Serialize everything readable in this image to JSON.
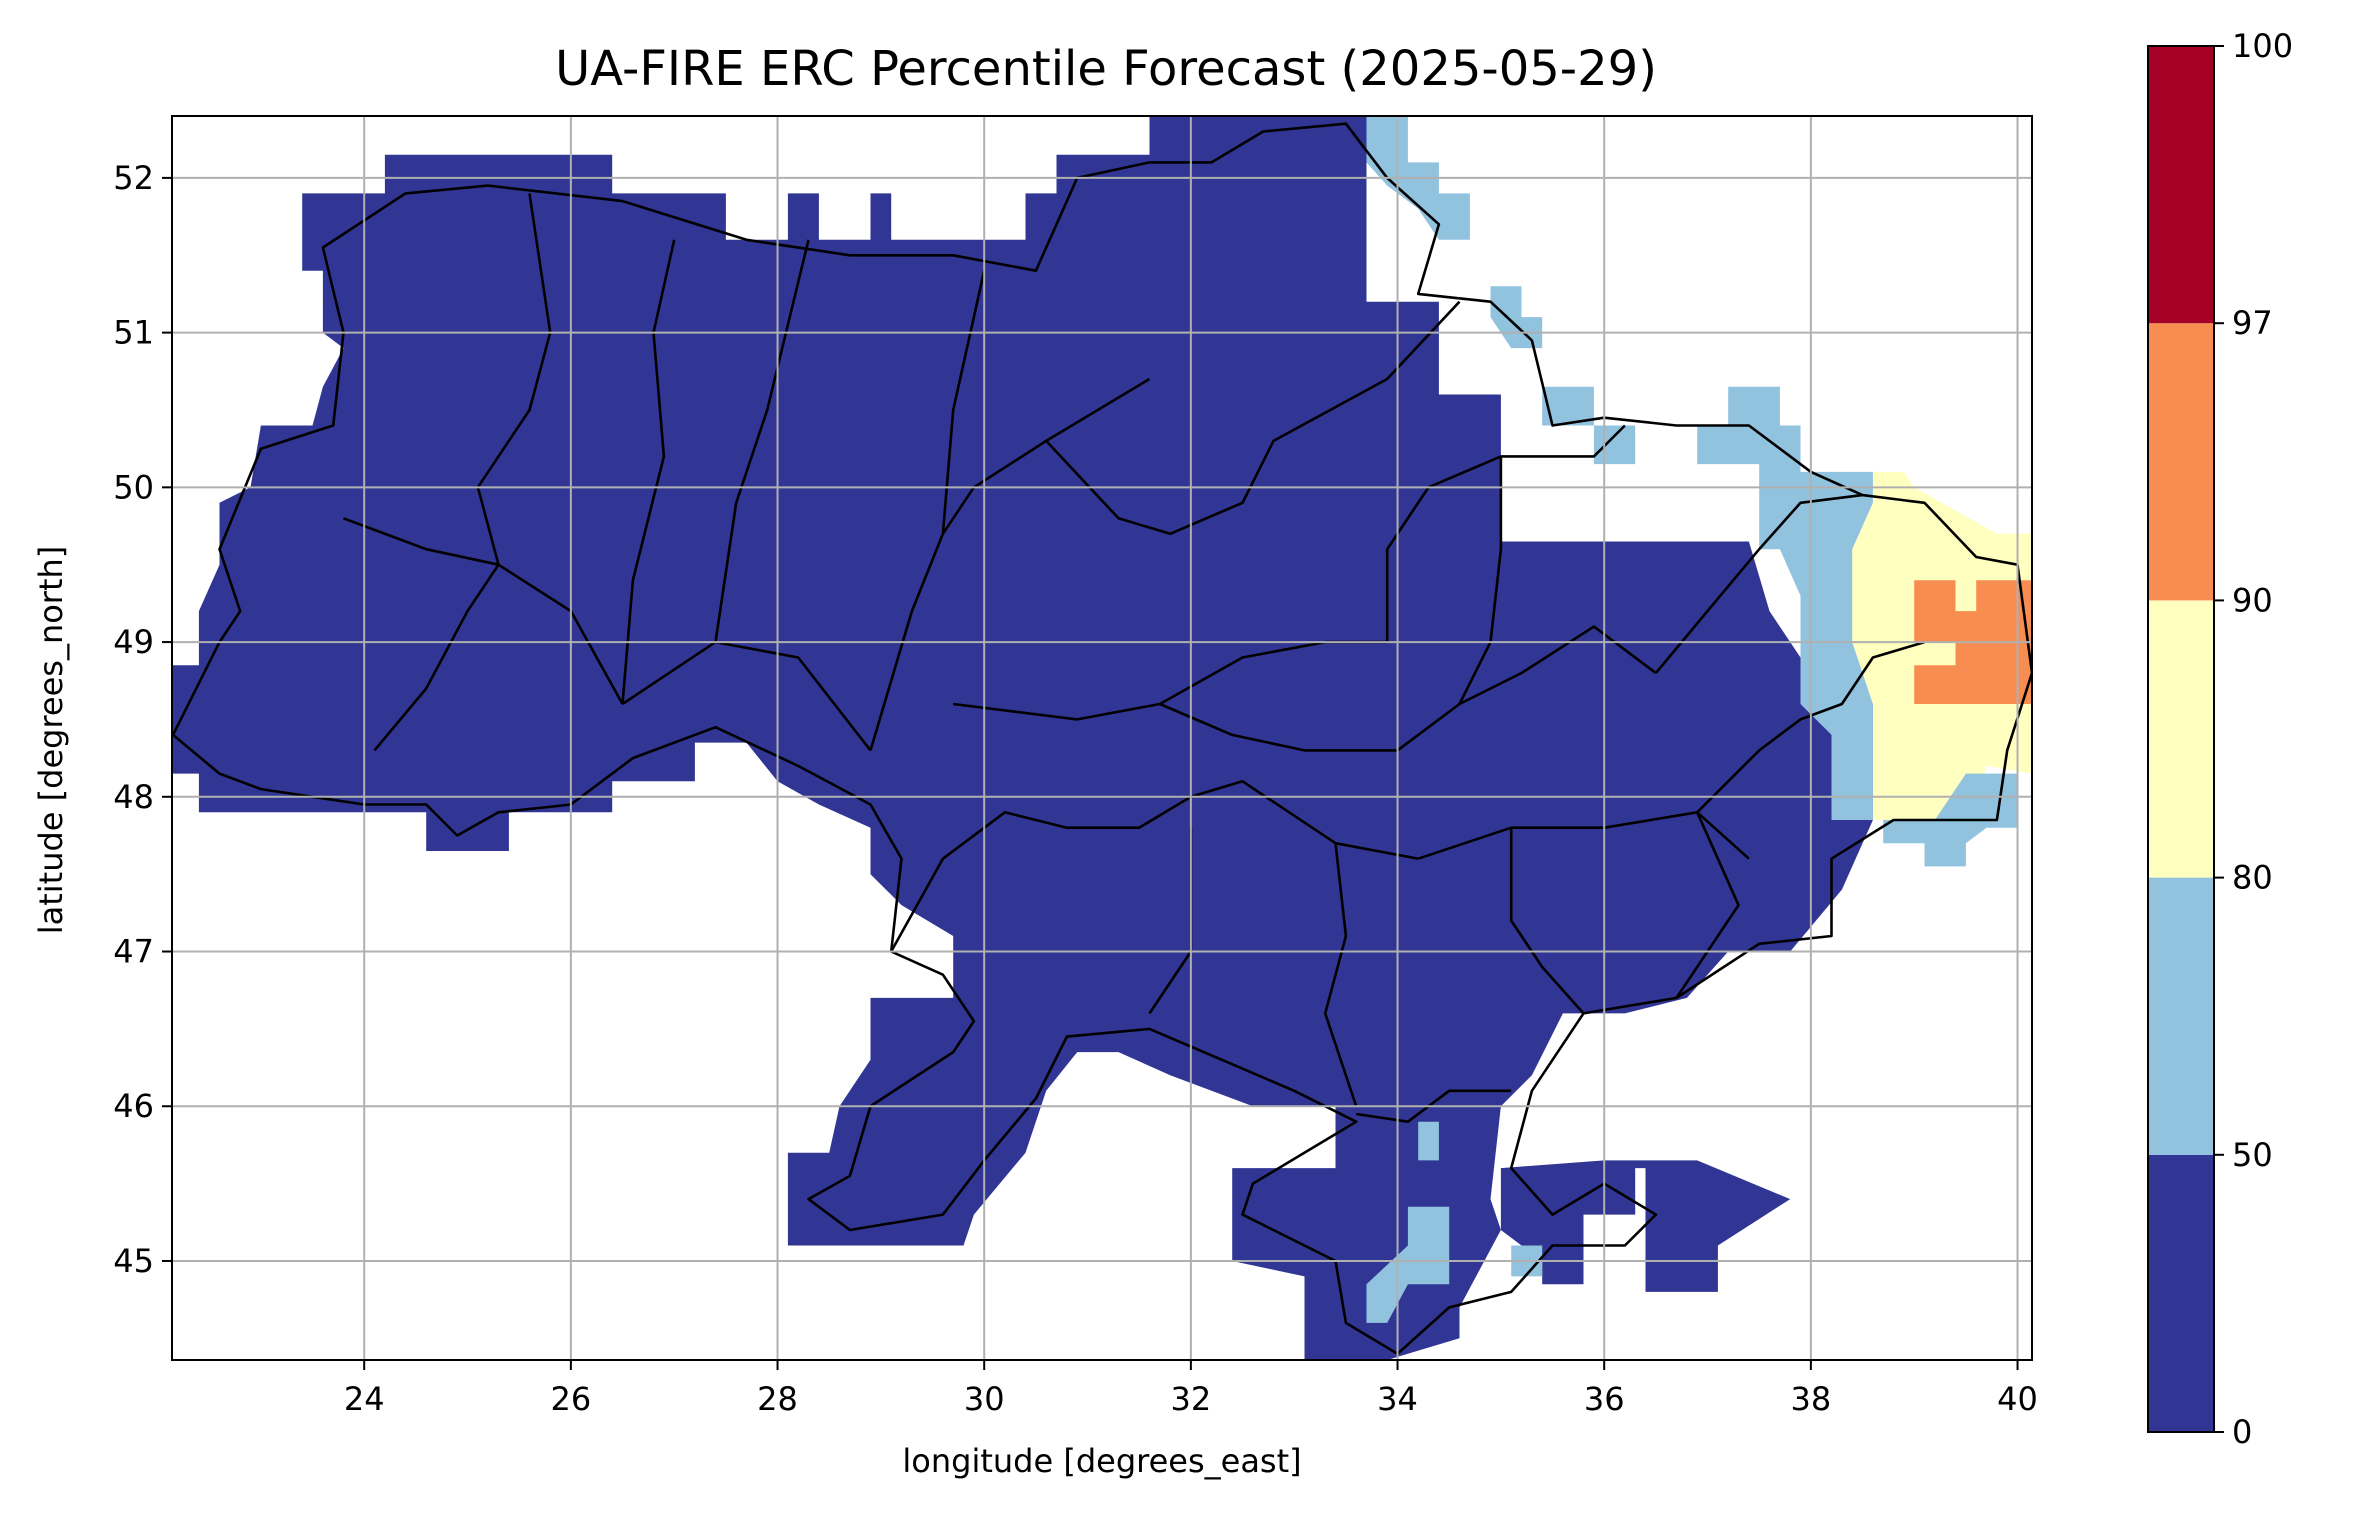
{
  "title": "UA-FIRE ERC Percentile Forecast (2025-05-29)",
  "xlabel": "longitude [degrees_east]",
  "ylabel": "latitude [degrees_north]",
  "chart_data": {
    "type": "heatmap",
    "title": "UA-FIRE ERC Percentile Forecast (2025-05-29)",
    "xlabel": "longitude [degrees_east]",
    "ylabel": "latitude [degrees_north]",
    "xlim": [
      22.14,
      40.14
    ],
    "ylim": [
      44.36,
      52.4
    ],
    "x_ticks": [
      24,
      26,
      28,
      30,
      32,
      34,
      36,
      38,
      40
    ],
    "x_tick_labels": [
      "24",
      "26",
      "28",
      "30",
      "32",
      "34",
      "36",
      "38",
      "40"
    ],
    "y_ticks": [
      45,
      46,
      47,
      48,
      49,
      50,
      51,
      52
    ],
    "y_tick_labels": [
      "45",
      "46",
      "47",
      "48",
      "49",
      "50",
      "51",
      "52"
    ],
    "grid": true,
    "colorbar": {
      "boundaries": [
        0,
        50,
        80,
        90,
        97,
        100
      ],
      "tick_labels": [
        "0",
        "50",
        "80",
        "90",
        "97",
        "100"
      ],
      "colors": [
        "#313695",
        "#91c3df",
        "#ffffbf",
        "#f88d52",
        "#a50026"
      ],
      "orientation": "vertical",
      "position": "right"
    },
    "base_class": "0-50",
    "base_color": "#313695",
    "regions": [
      {
        "class": "50-80",
        "description": "north-east border near 33.7-34.7E, 51.6-52.3N"
      },
      {
        "class": "50-80",
        "description": "eastern border strip 35-38.5E, 49.6-51.2N"
      },
      {
        "class": "50-80",
        "description": "Crimea cells near 34.2E 45.7N, 34.3E 45.2N, 35.2E 45.1N"
      },
      {
        "class": "80-90",
        "description": "far east 38.6-40.1E, 47.8-50.1N"
      },
      {
        "class": "90-97",
        "description": "far east hotspot 39-40.1E, 48.6-49.4N"
      }
    ]
  }
}
